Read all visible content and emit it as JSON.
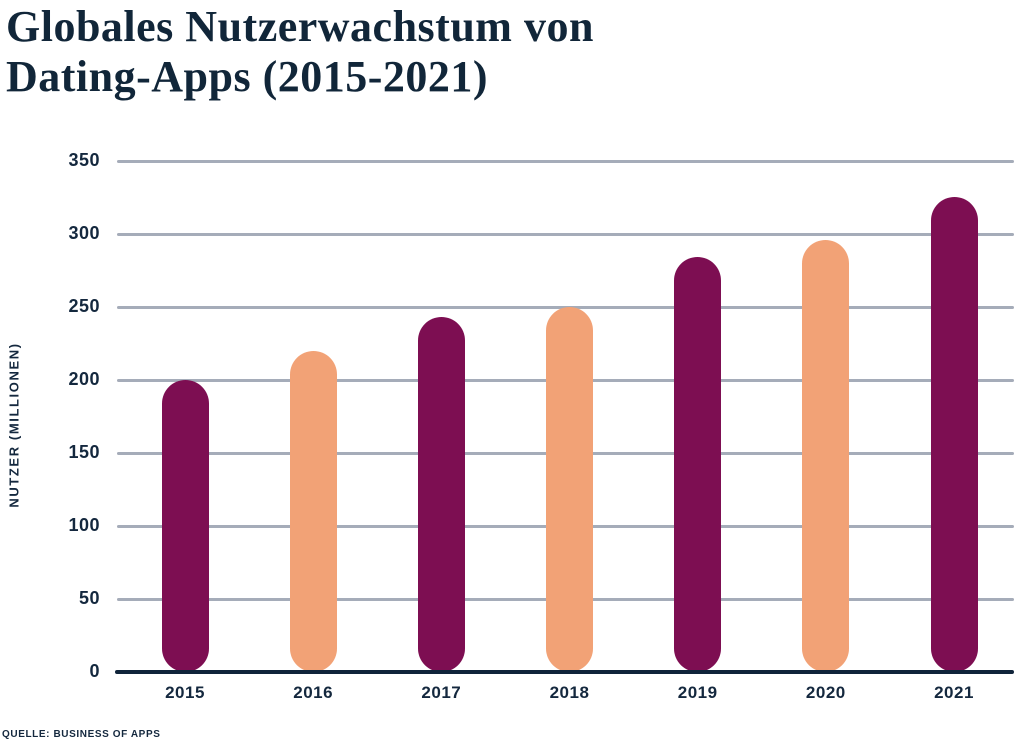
{
  "title": {
    "line1": "Globales Nutzerwachstum von",
    "line2": "Dating-Apps (2015-2021)"
  },
  "source": "QUELLE: BUSINESS OF APPS",
  "colors": {
    "magenta_bar": "#7D0E52",
    "peach_bar": "#F2A276",
    "navy_text": "#14283E",
    "gridline_gray": "#A5ACB9",
    "background": "#FFFFFF"
  },
  "chart_data": {
    "type": "bar",
    "title": "Globales Nutzerwachstum von Dating-Apps (2015-2021)",
    "categories": [
      "2015",
      "2016",
      "2017",
      "2018",
      "2019",
      "2020",
      "2021"
    ],
    "values": [
      200,
      220,
      243,
      250,
      284,
      296,
      325
    ],
    "bar_colors": [
      "#7D0E52",
      "#F2A276",
      "#7D0E52",
      "#F2A276",
      "#7D0E52",
      "#F2A276",
      "#7D0E52"
    ],
    "xlabel": "",
    "ylabel": "NUTZER (MILLIONEN)",
    "ylim": [
      0,
      350
    ],
    "yticks": [
      0,
      50,
      100,
      150,
      200,
      250,
      300,
      350
    ],
    "grid": true,
    "legend": false,
    "source": "QUELLE: BUSINESS OF APPS"
  }
}
